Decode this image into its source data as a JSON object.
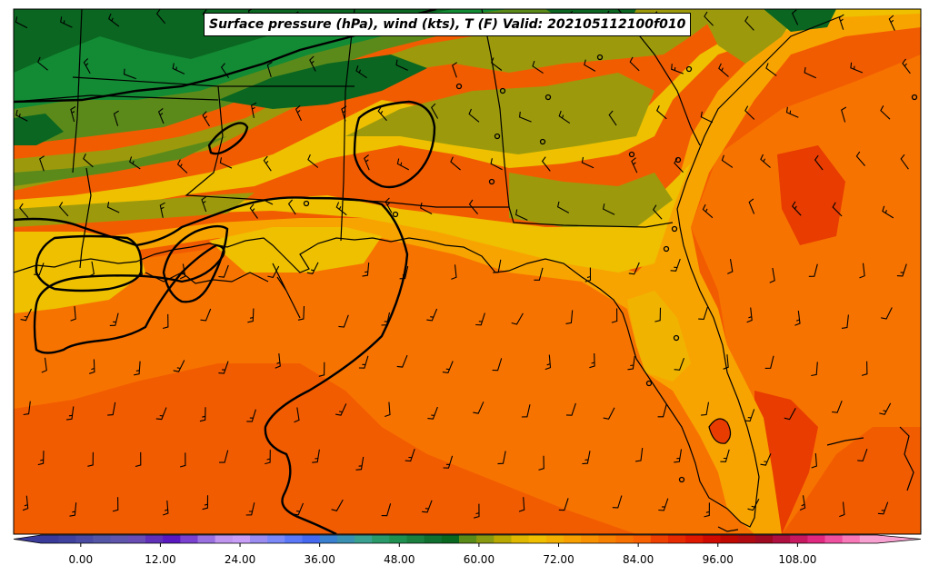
{
  "title": "Surface pressure (hPa), wind (kts), T (F) Valid: 202105112100f010",
  "colorbar": {
    "tick_labels": [
      "0.00",
      "12.00",
      "24.00",
      "36.00",
      "48.00",
      "60.00",
      "72.00",
      "84.00",
      "96.00",
      "108.00"
    ],
    "colors": [
      "#3a3a9a",
      "#40409e",
      "#4a4aa4",
      "#5555a8",
      "#5f55ad",
      "#6a4db4",
      "#6030b8",
      "#5a18c0",
      "#7a40d0",
      "#9a70e0",
      "#c095f0",
      "#c89ef8",
      "#9a8cf0",
      "#7a88f8",
      "#5a78f8",
      "#4468f0",
      "#3a80d0",
      "#3a90b0",
      "#3aa090",
      "#2a9a6a",
      "#209050",
      "#1a8040",
      "#107030",
      "#086820",
      "#5a8a18",
      "#8a9a10",
      "#b8a800",
      "#e0b800",
      "#f0c000",
      "#f4b000",
      "#f8a000",
      "#f89000",
      "#f88000",
      "#f87000",
      "#f86000",
      "#f04000",
      "#e82a00",
      "#e01800",
      "#d00a00",
      "#c00800",
      "#b00a10",
      "#a00a20",
      "#b01040",
      "#c81860",
      "#e02880",
      "#f050a0",
      "#f878b8",
      "#f8a0d0"
    ],
    "value_min": -6,
    "value_max": 120,
    "tick_values": [
      0,
      12,
      24,
      36,
      48,
      60,
      72,
      84,
      96,
      108
    ]
  },
  "temperature_zones": [
    {
      "label": "upper-north",
      "color": "#0a6620"
    },
    {
      "label": "north",
      "color": "#138a34"
    },
    {
      "label": "mid",
      "color": "#5c8a1a"
    },
    {
      "label": "olive",
      "color": "#9c9a0c"
    },
    {
      "label": "yellow",
      "color": "#eec000"
    },
    {
      "label": "orange",
      "color": "#f8a400"
    },
    {
      "label": "dark-orange",
      "color": "#f77300"
    },
    {
      "label": "red-orange",
      "color": "#f25c00"
    },
    {
      "label": "red",
      "color": "#e83c00"
    }
  ]
}
